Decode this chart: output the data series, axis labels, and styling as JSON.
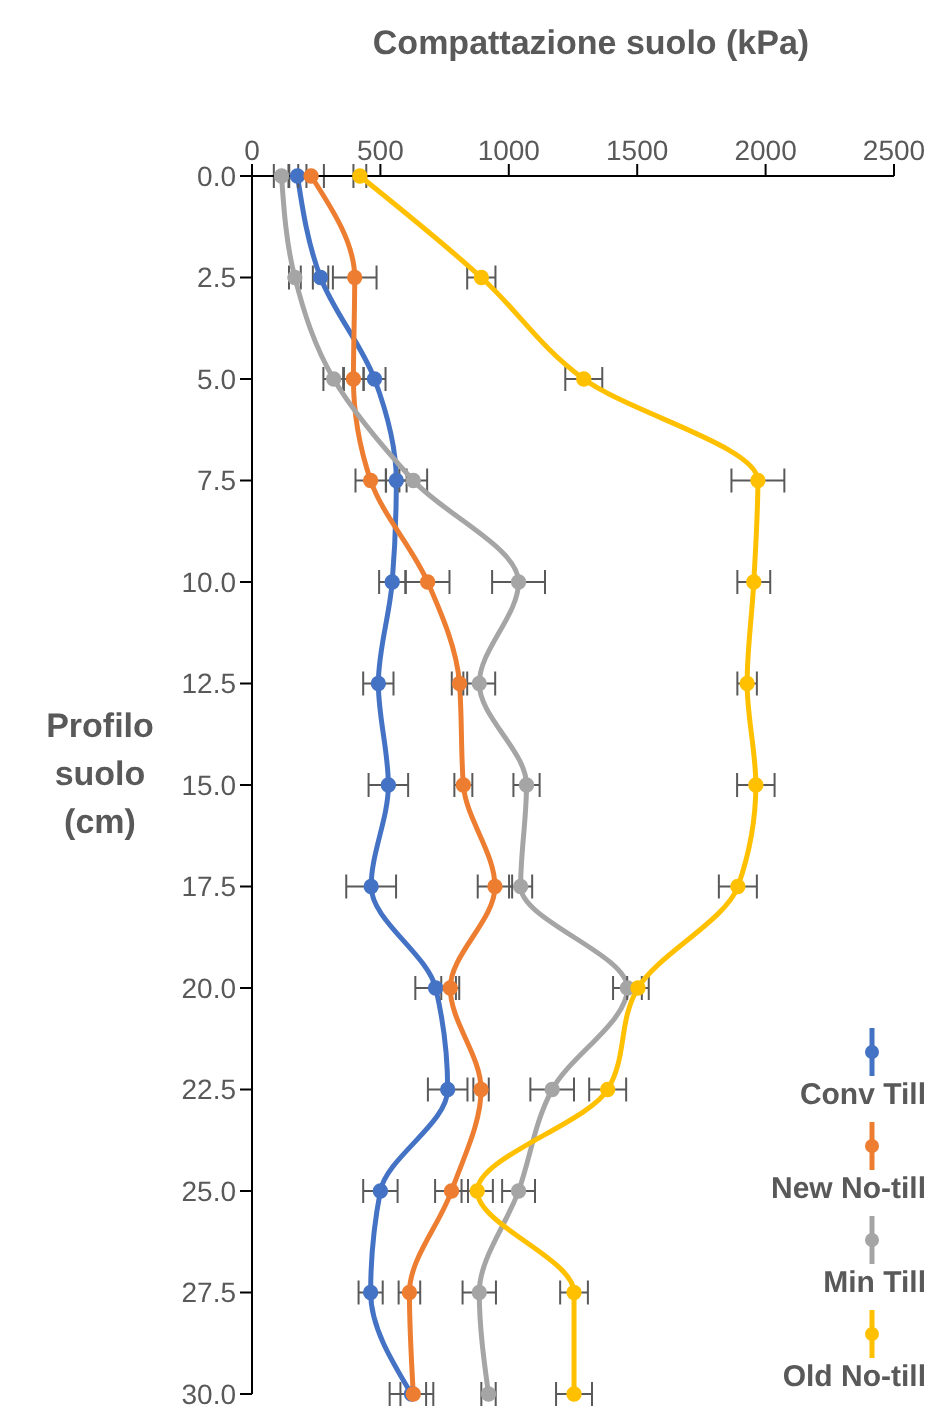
{
  "chart_data": {
    "type": "line",
    "orientation": "horizontal",
    "xlabel": "Compattazione suolo (kPa)",
    "ylabel": "Profilo suolo (cm)",
    "categories": [
      "0.0",
      "2.5",
      "5.0",
      "7.5",
      "10.0",
      "12.5",
      "15.0",
      "17.5",
      "20.0",
      "22.5",
      "25.0",
      "27.5",
      "30.0"
    ],
    "xlim": [
      0,
      2500
    ],
    "xticks": [
      0,
      500,
      1000,
      1500,
      2000,
      2500
    ],
    "grid": false,
    "legend": "bottom right",
    "marker": "circle",
    "line_style": "solid",
    "series": [
      {
        "name": "Conv Till",
        "color": "#4472c4",
        "values": [
          177,
          267,
          477,
          562,
          546,
          492,
          531,
          464,
          715,
          762,
          500,
          462,
          621
        ],
        "errors": [
          35,
          30,
          43,
          40,
          51,
          59,
          77,
          97,
          79,
          77,
          67,
          47,
          85
        ]
      },
      {
        "name": "New No-till",
        "color": "#ed7d31",
        "values": [
          230,
          400,
          395,
          462,
          684,
          808,
          823,
          946,
          772,
          892,
          777,
          613,
          628
        ],
        "errors": [
          50,
          85,
          40,
          59,
          85,
          30,
          35,
          67,
          35,
          30,
          64,
          42,
          50
        ]
      },
      {
        "name": "Min Till",
        "color": "#a5a5a5",
        "values": [
          115,
          167,
          318,
          628,
          1038,
          885,
          1069,
          1046,
          1462,
          1169,
          1038,
          885,
          921
        ],
        "errors": [
          30,
          23,
          40,
          54,
          103,
          62,
          51,
          45,
          56,
          85,
          64,
          65,
          28
        ]
      },
      {
        "name": "Old No-till",
        "color": "#ffc000",
        "values": [
          420,
          893,
          1292,
          1970,
          1954,
          1928,
          1962,
          1892,
          1503,
          1385,
          877,
          1254,
          1254
        ],
        "errors": [
          25,
          55,
          72,
          103,
          64,
          38,
          73,
          74,
          42,
          72,
          61,
          54,
          70
        ]
      }
    ]
  }
}
